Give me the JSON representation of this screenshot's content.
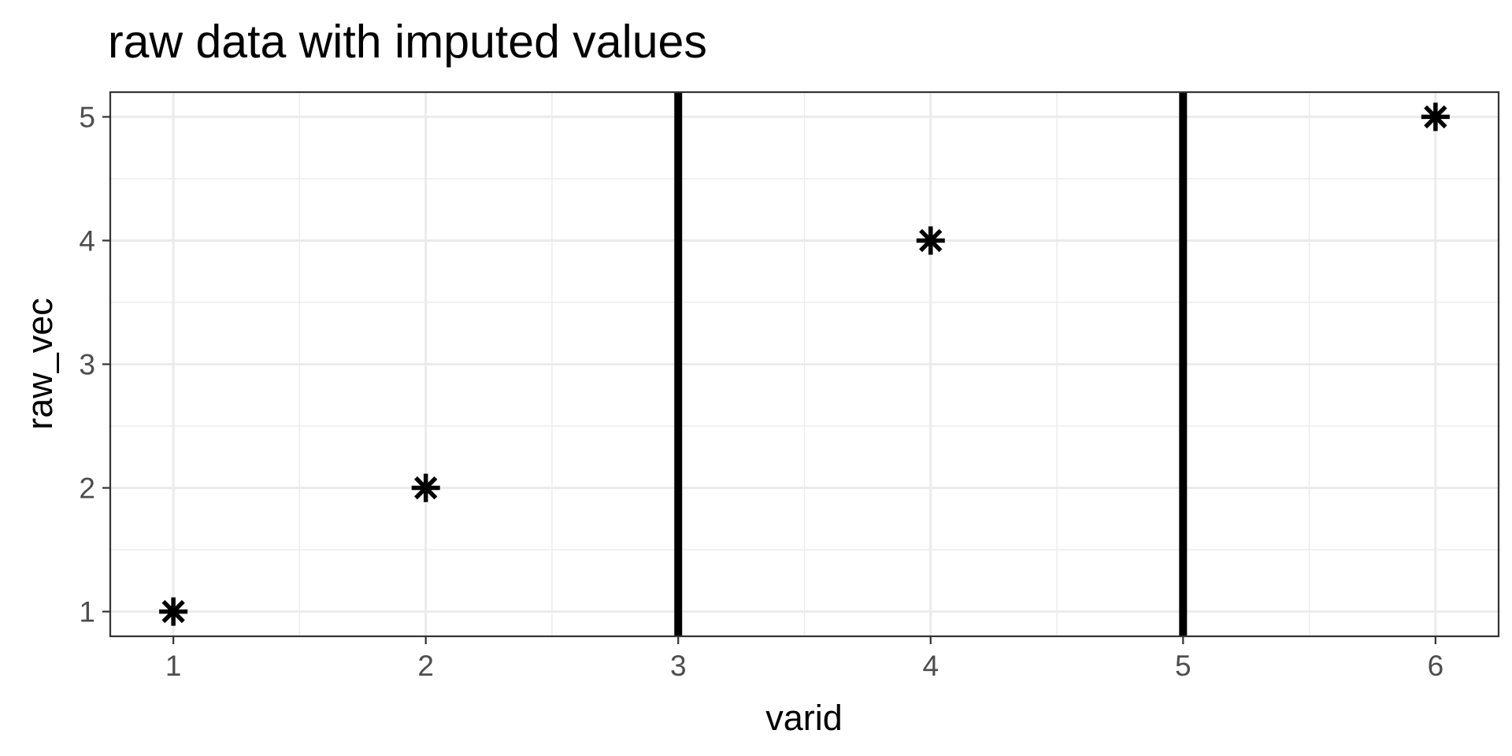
{
  "chart_data": {
    "type": "scatter",
    "title": "raw data with imputed values",
    "xlabel": "varid",
    "ylabel": "raw_vec",
    "xlim": [
      0.75,
      6.25
    ],
    "ylim": [
      0.8,
      5.2
    ],
    "x_ticks": [
      1,
      2,
      3,
      4,
      5,
      6
    ],
    "y_ticks": [
      1,
      2,
      3,
      4,
      5
    ],
    "points": [
      {
        "x": 1,
        "y": 1
      },
      {
        "x": 2,
        "y": 2
      },
      {
        "x": 4,
        "y": 4
      },
      {
        "x": 6,
        "y": 5
      }
    ],
    "vlines": [
      3,
      5
    ],
    "marker": "asterisk",
    "grid": true,
    "colors": {
      "background": "#ffffff",
      "grid": "#ebebeb",
      "panel_border": "#333333",
      "marks": "#000000",
      "tick_text": "#4d4d4d"
    }
  }
}
